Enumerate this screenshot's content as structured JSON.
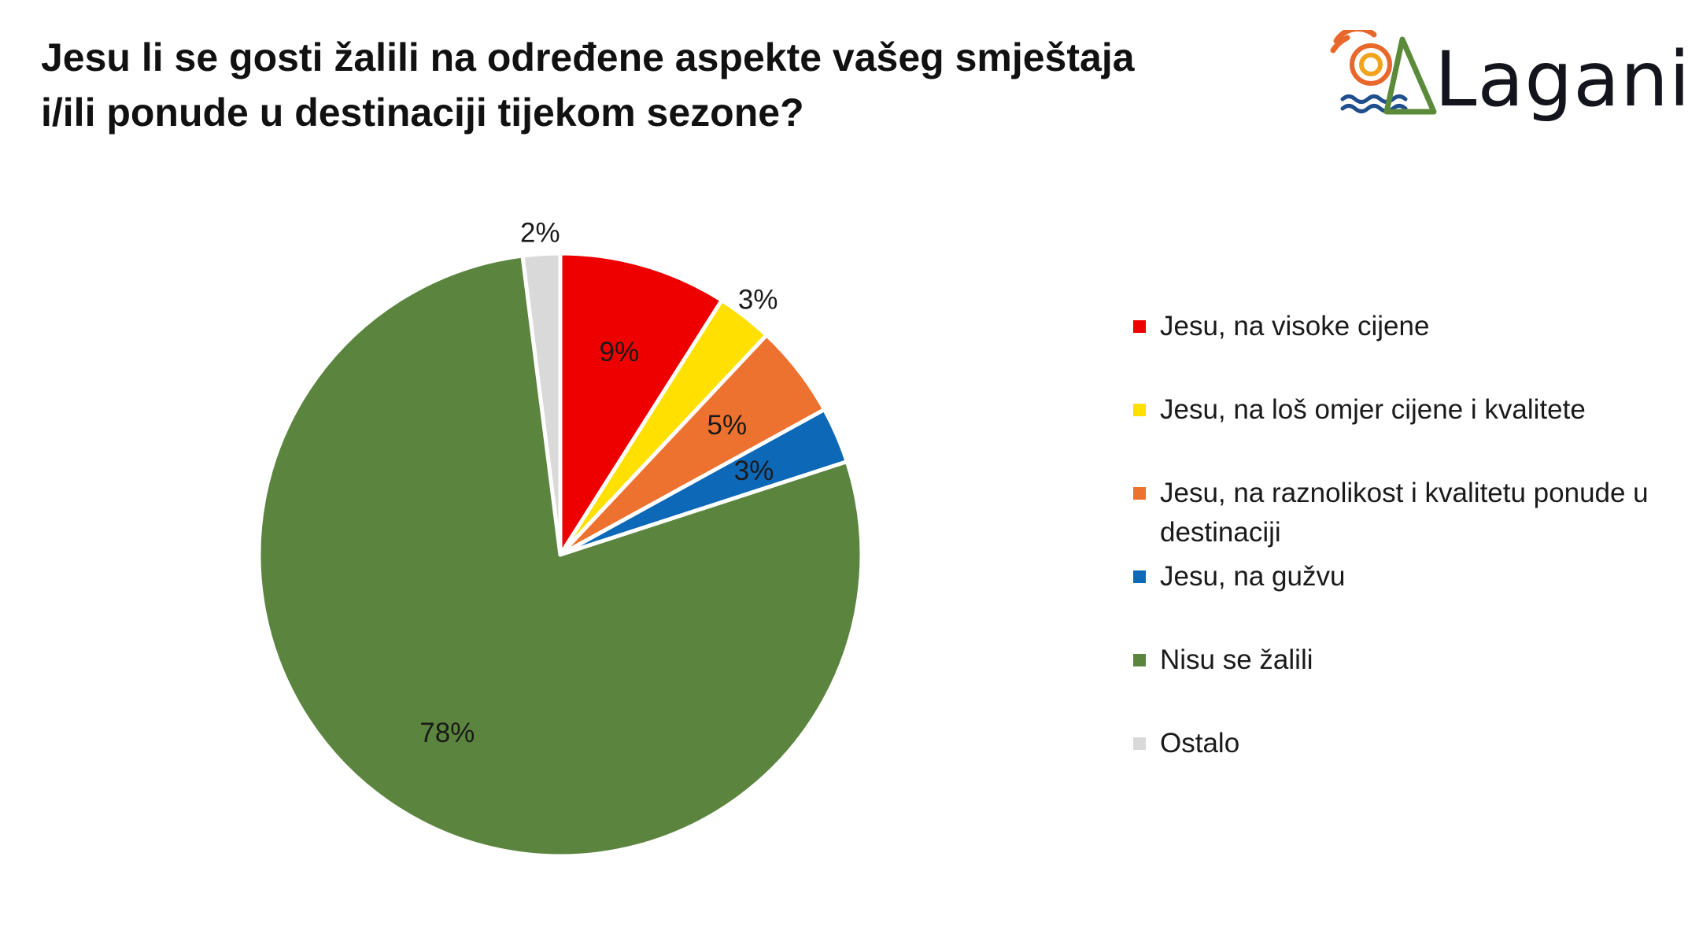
{
  "header": {
    "title_line1": "Jesu li se gosti žalili na određene aspekte vašeg smještaja",
    "title_line2": "i/ili  ponude u destinaciji tijekom sezone?"
  },
  "logo": {
    "text": "Laganini",
    "colors": {
      "sun": "#e8672a",
      "sun_inner": "#f2a31d",
      "waves": "#1f4e8c",
      "triangle": "#5b8a3a",
      "text": "#13141c"
    }
  },
  "chart_data": {
    "type": "pie",
    "title": "Jesu li se gosti žalili na određene aspekte vašeg smještaja i/ili  ponude u destinaciji tijekom sezone?",
    "start_angle_deg": 0,
    "direction": "clockwise",
    "legend_position": "right",
    "slices": [
      {
        "label": "Jesu, na visoke cijene",
        "value": 9,
        "display": "9%",
        "color": "#ee0000",
        "label_placement": "inside"
      },
      {
        "label": "Jesu, na loš omjer cijene i kvalitete",
        "value": 3,
        "display": "3%",
        "color": "#ffe000",
        "label_placement": "outside"
      },
      {
        "label": "Jesu, na raznolikost i kvalitetu ponude u destinaciji",
        "value": 5,
        "display": "5%",
        "color": "#ed7230",
        "label_placement": "inside"
      },
      {
        "label": "Jesu, na gužvu",
        "value": 3,
        "display": "3%",
        "color": "#0d68b8",
        "label_placement": "inside"
      },
      {
        "label": "Nisu se žalili",
        "value": 78,
        "display": "78%",
        "color": "#5b853f",
        "label_placement": "inside"
      },
      {
        "label": "Ostalo",
        "value": 2,
        "display": "2%",
        "color": "#d9d9d9",
        "label_placement": "outside"
      }
    ]
  }
}
